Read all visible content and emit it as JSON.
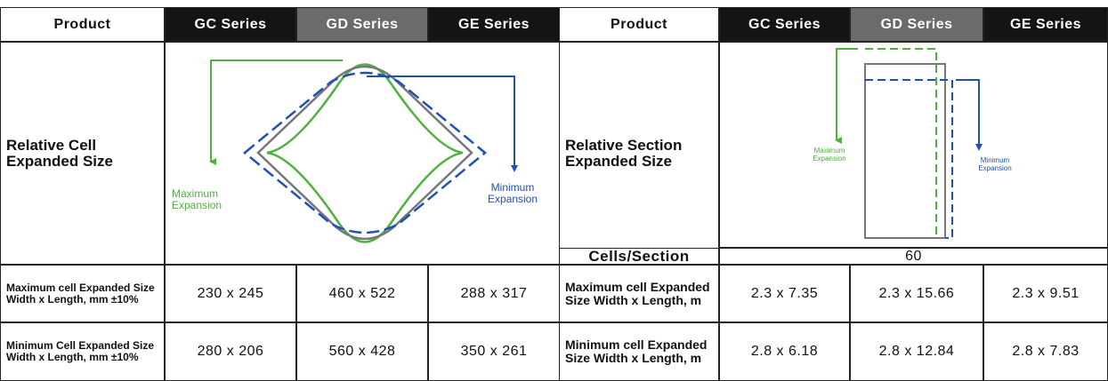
{
  "left": {
    "headers": [
      "Product",
      "GC Series",
      "GD Series",
      "GE Series"
    ],
    "diagram_label": "Relative Cell Expanded Size",
    "max_expansion": "Maximum Expansion",
    "min_expansion": "Minimum Expansion",
    "rows": [
      {
        "label": "Maximum cell Expanded Size Width x Length, mm ±10%",
        "values": [
          "230 x 245",
          "460 x 522",
          "288 x 317"
        ]
      },
      {
        "label": "Minimum Cell Expanded Size Width x Length, mm ±10%",
        "values": [
          "280 x 206",
          "560 x 428",
          "350 x 261"
        ]
      }
    ]
  },
  "right": {
    "headers": [
      "Product",
      "GC Series",
      "GD Series",
      "GE Series"
    ],
    "diagram_label": "Relative Section Expanded Size",
    "max_expansion": "Maximum Expansion",
    "min_expansion": "Minimum Expansion",
    "cells_per_section": {
      "label": "Cells/Section",
      "value": "60"
    },
    "rows": [
      {
        "label": "Maximum cell Expanded Size Width x Length, m",
        "values": [
          "2.3 x 7.35",
          "2.3 x 15.66",
          "2.3 x 9.51"
        ]
      },
      {
        "label": "Minimum cell Expanded Size Width x Length, m",
        "values": [
          "2.8 x 6.18",
          "2.8 x 12.84",
          "2.8 x 7.83"
        ]
      }
    ]
  }
}
